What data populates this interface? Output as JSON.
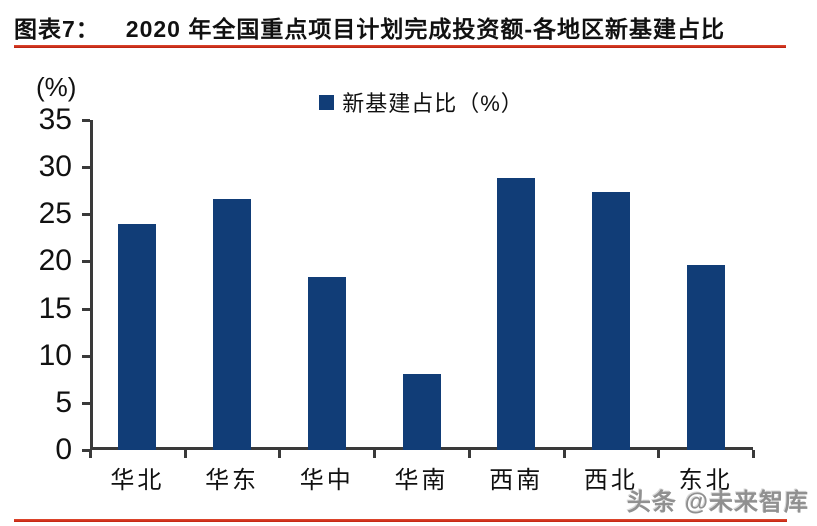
{
  "header": {
    "fig_label": "图表7：",
    "title": "2020 年全国重点项目计划完成投资额-各地区新基建占比"
  },
  "legend": {
    "label": "新基建占比（%）"
  },
  "axis": {
    "unit_label": "(%)"
  },
  "watermark": "头条 @未来智库",
  "colors": {
    "bar": "#113d77",
    "axis": "#3a3a3a",
    "accent_red": "#cf2c18",
    "text": "#111111",
    "watermark": "#909090"
  },
  "chart_data": {
    "type": "bar",
    "title": "2020 年全国重点项目计划完成投资额-各地区新基建占比",
    "series_name": "新基建占比（%）",
    "categories": [
      "华北",
      "华东",
      "华中",
      "华南",
      "西南",
      "西北",
      "东北"
    ],
    "values": [
      24.0,
      26.6,
      18.3,
      8.1,
      28.9,
      27.4,
      19.6
    ],
    "xlabel": "",
    "ylabel": "(%)",
    "ylim": [
      0,
      35
    ],
    "ytick_step": 5,
    "yticks": [
      0,
      5,
      10,
      15,
      20,
      25,
      30,
      35
    ],
    "grid": false,
    "legend_position": "top-center",
    "bar_color": "#113d77"
  }
}
